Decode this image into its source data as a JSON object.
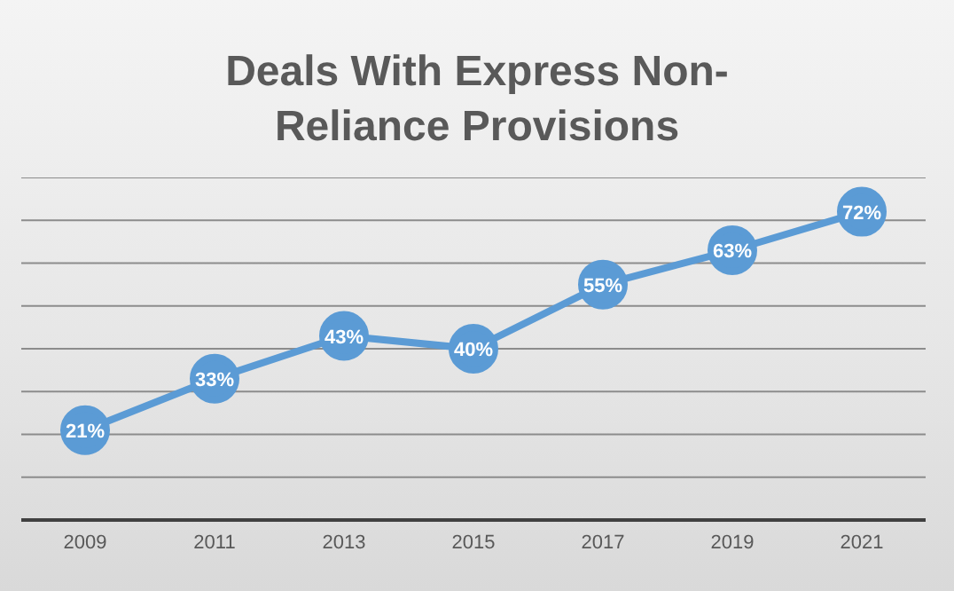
{
  "chart_data": {
    "type": "line",
    "title": "Deals With Express Non-Reliance Provisions",
    "categories": [
      "2009",
      "2011",
      "2013",
      "2015",
      "2017",
      "2019",
      "2021"
    ],
    "series": [
      {
        "color": "#5b9bd5",
        "values": [
          21,
          33,
          43,
          40,
          55,
          63,
          72
        ],
        "value_labels": [
          "21%",
          "33%",
          "43%",
          "40%",
          "55%",
          "63%",
          "72%"
        ]
      }
    ],
    "ylim": [
      0,
      80
    ],
    "yticks": [
      {
        "value": 0,
        "label": null
      },
      {
        "value": 10,
        "label": null
      },
      {
        "value": 20,
        "label": null
      },
      {
        "value": 30,
        "label": null
      },
      {
        "value": 40,
        "label": null
      },
      {
        "value": 50,
        "label": null
      },
      {
        "value": 60,
        "label": null
      },
      {
        "value": 70,
        "label": null
      }
    ],
    "tick_labels": "x",
    "grid": "y",
    "marker": "circle",
    "line_style": "solid",
    "legend": false
  }
}
